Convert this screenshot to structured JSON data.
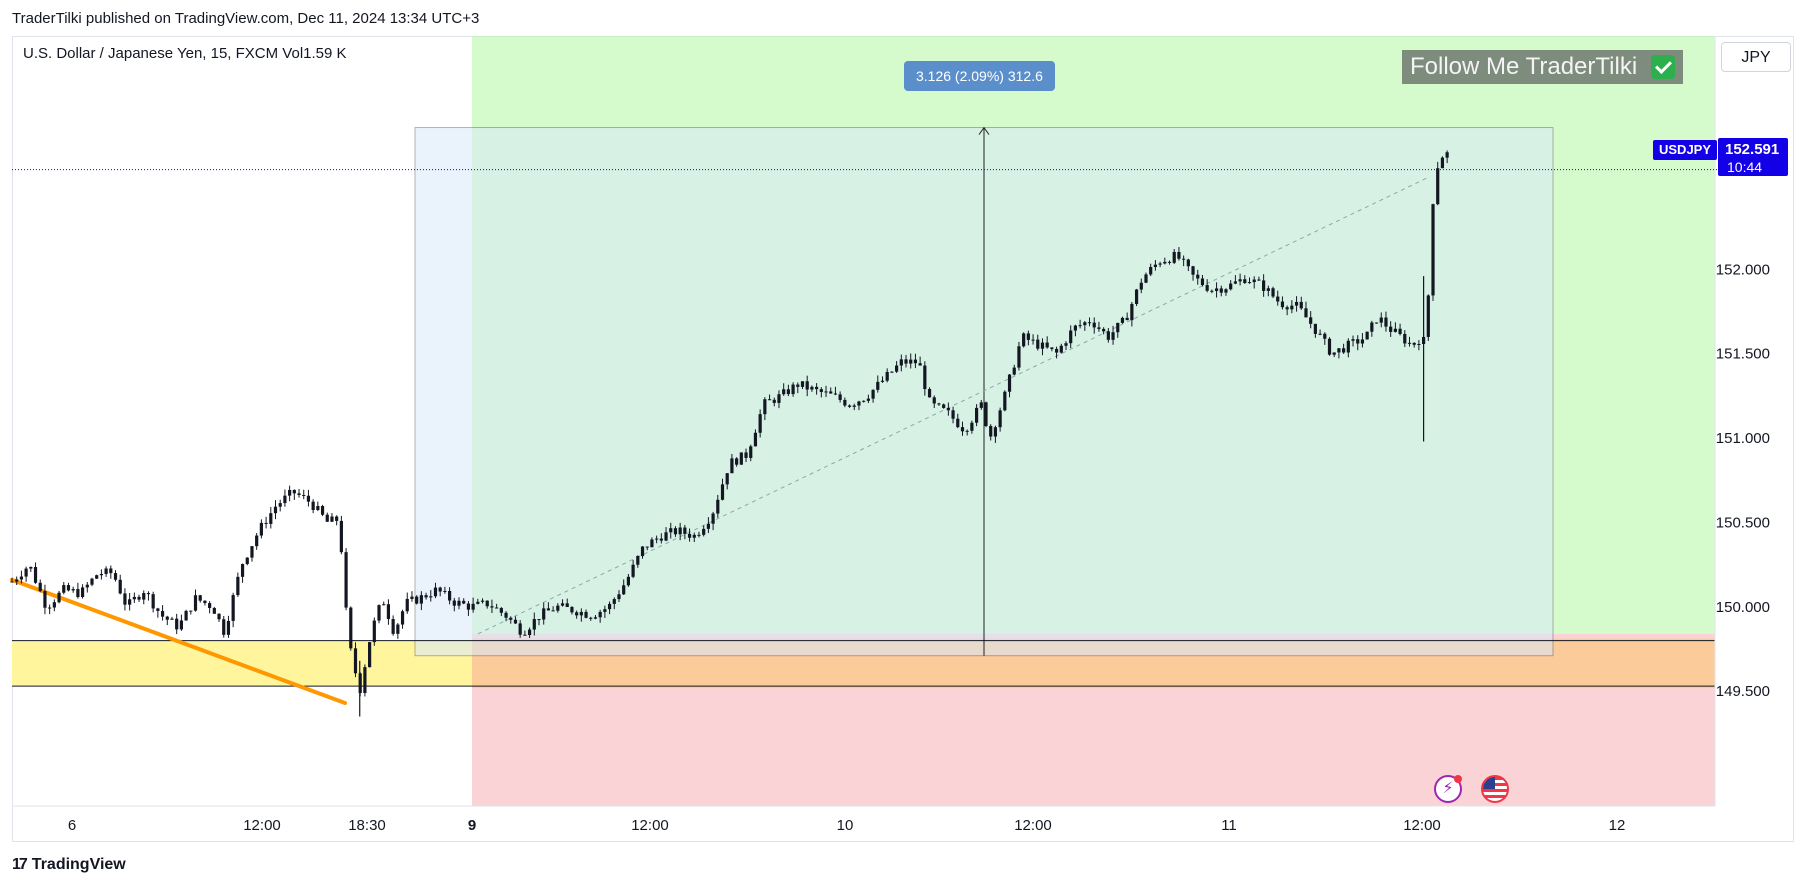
{
  "header": {
    "attribution": "TraderTilki published on TradingView.com, Dec 11, 2024 13:34 UTC+3"
  },
  "legend": {
    "text": "U.S. Dollar / Japanese Yen, 15, FXCM  Vol1.59 K"
  },
  "currency_button": {
    "label": "JPY"
  },
  "banner": {
    "text": "Follow Me TraderTilki",
    "icon": "check-icon"
  },
  "measurement": {
    "label": "3.126 (2.09%) 312.6"
  },
  "price_marker": {
    "symbol": "USDJPY",
    "price": "152.591",
    "countdown": "10:44"
  },
  "footer": {
    "brand": "TradingView",
    "icon": "tradingview-logo-icon"
  },
  "event_icons": [
    "lightning-icon",
    "us-flag-icon"
  ],
  "colors": {
    "candle": "#131722",
    "trendline": "#ff9800",
    "price_line": "#1400e6",
    "target_zone": "#b2f7a3",
    "stop_zone": "#f9d3d6",
    "support_zone": "#fff59d",
    "measure_blue": "#d9e9fb"
  },
  "chart_data": {
    "type": "candlestick",
    "symbol": "USDJPY",
    "interval": "15",
    "ylim": [
      149.27,
      153.3
    ],
    "yticks": [
      "152.000",
      "151.500",
      "151.000",
      "150.500",
      "150.000",
      "149.500"
    ],
    "xticks": [
      "6",
      "12:00",
      "18:30",
      "9",
      "12:00",
      "10",
      "12:00",
      "11",
      "12:00",
      "12"
    ],
    "current_price": 152.591,
    "support_lines": [
      149.8,
      149.53
    ],
    "position": {
      "entry": 149.84,
      "target_top": 152.78,
      "stop": 149.08
    },
    "measure": {
      "from": 149.71,
      "to": 152.84,
      "change": "3.126 (2.09%) 312.6"
    },
    "trendline": {
      "from": 150.16,
      "to": 149.43
    },
    "path": [
      [
        0,
        150.15
      ],
      [
        15,
        150.25
      ],
      [
        30,
        150.0
      ],
      [
        45,
        150.1
      ],
      [
        60,
        150.08
      ],
      [
        75,
        150.2
      ],
      [
        88,
        150.2
      ],
      [
        100,
        150.0
      ],
      [
        115,
        150.1
      ],
      [
        130,
        149.95
      ],
      [
        145,
        149.88
      ],
      [
        160,
        150.05
      ],
      [
        175,
        150.0
      ],
      [
        185,
        149.85
      ],
      [
        200,
        150.25
      ],
      [
        215,
        150.45
      ],
      [
        230,
        150.6
      ],
      [
        245,
        150.68
      ],
      [
        260,
        150.62
      ],
      [
        275,
        150.5
      ],
      [
        285,
        150.52
      ],
      [
        293,
        149.8
      ],
      [
        303,
        149.5
      ],
      [
        313,
        149.85
      ],
      [
        323,
        150.05
      ],
      [
        333,
        149.85
      ],
      [
        343,
        150.02
      ],
      [
        355,
        150.05
      ],
      [
        370,
        150.1
      ],
      [
        385,
        150.03
      ],
      [
        400,
        150.0
      ],
      [
        415,
        150.02
      ],
      [
        430,
        149.95
      ],
      [
        445,
        149.85
      ],
      [
        460,
        149.95
      ],
      [
        475,
        150.0
      ],
      [
        490,
        149.98
      ],
      [
        505,
        149.95
      ],
      [
        520,
        150.0
      ],
      [
        535,
        150.15
      ],
      [
        550,
        150.35
      ],
      [
        565,
        150.42
      ],
      [
        580,
        150.45
      ],
      [
        595,
        150.42
      ],
      [
        610,
        150.55
      ],
      [
        625,
        150.85
      ],
      [
        640,
        150.9
      ],
      [
        655,
        151.2
      ],
      [
        670,
        151.25
      ],
      [
        685,
        151.32
      ],
      [
        700,
        151.28
      ],
      [
        715,
        151.25
      ],
      [
        730,
        151.2
      ],
      [
        745,
        151.25
      ],
      [
        760,
        151.35
      ],
      [
        775,
        151.45
      ],
      [
        790,
        151.45
      ],
      [
        800,
        151.2
      ],
      [
        815,
        151.15
      ],
      [
        830,
        151.05
      ],
      [
        845,
        151.2
      ],
      [
        852,
        151.0
      ],
      [
        865,
        151.25
      ],
      [
        880,
        151.6
      ],
      [
        895,
        151.55
      ],
      [
        910,
        151.5
      ],
      [
        925,
        151.65
      ],
      [
        940,
        151.7
      ],
      [
        955,
        151.6
      ],
      [
        970,
        151.7
      ],
      [
        985,
        151.95
      ],
      [
        1000,
        152.05
      ],
      [
        1015,
        152.08
      ],
      [
        1030,
        151.95
      ],
      [
        1045,
        151.88
      ],
      [
        1060,
        151.9
      ],
      [
        1075,
        151.95
      ],
      [
        1090,
        151.9
      ],
      [
        1105,
        151.8
      ],
      [
        1120,
        151.78
      ],
      [
        1135,
        151.65
      ],
      [
        1150,
        151.5
      ],
      [
        1165,
        151.55
      ],
      [
        1180,
        151.6
      ],
      [
        1190,
        151.72
      ],
      [
        1200,
        151.65
      ],
      [
        1210,
        151.6
      ],
      [
        1220,
        151.55
      ],
      [
        1228,
        151.6
      ],
      [
        1232,
        151.55
      ],
      [
        1238,
        152.4
      ],
      [
        1243,
        152.65
      ],
      [
        1250,
        152.7
      ],
      [
        1253,
        152.6
      ]
    ]
  }
}
